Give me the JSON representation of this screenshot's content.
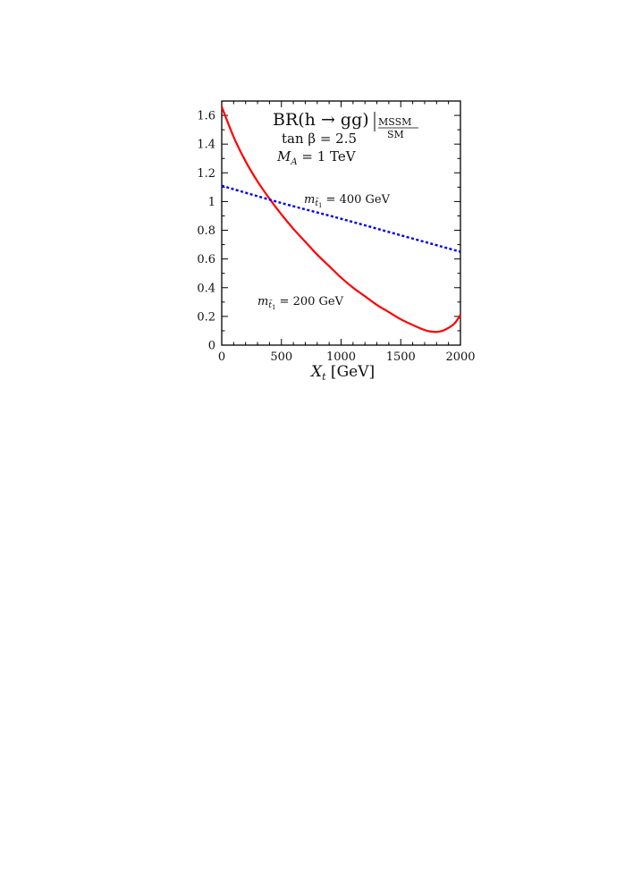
{
  "chart_data": {
    "type": "line",
    "title": {
      "main": "BR(h → gg)",
      "sub_top": "MSSM",
      "sub_bottom": "SM"
    },
    "params": [
      "tan β = 2.5",
      "M",
      "A",
      " = 1 TeV"
    ],
    "xlabel": {
      "symbol": "X",
      "sub": "t",
      "unit": " [GeV]"
    },
    "ylabel": "",
    "xlim": [
      0,
      2000
    ],
    "ylim": [
      0,
      1.7
    ],
    "xticks": [
      0,
      500,
      1000,
      1500,
      2000
    ],
    "yticks": [
      0,
      0.2,
      0.4,
      0.6,
      0.8,
      1,
      1.2,
      1.4,
      1.6
    ],
    "grid": false,
    "series": [
      {
        "name": "m t̃1 = 200 GeV",
        "label_parts": [
          "m",
          "t̃",
          "1",
          " = 200 GeV"
        ],
        "color": "#ff0000",
        "style": "solid",
        "x": [
          0,
          100,
          200,
          300,
          400,
          500,
          600,
          700,
          800,
          900,
          1000,
          1100,
          1200,
          1300,
          1400,
          1500,
          1600,
          1700,
          1750,
          1800,
          1850,
          1900,
          1950,
          2000
        ],
        "y": [
          1.66,
          1.45,
          1.28,
          1.14,
          1.02,
          0.91,
          0.81,
          0.72,
          0.63,
          0.55,
          0.47,
          0.4,
          0.34,
          0.28,
          0.23,
          0.18,
          0.14,
          0.105,
          0.095,
          0.092,
          0.1,
          0.12,
          0.15,
          0.21
        ]
      },
      {
        "name": "m t̃1 = 400 GeV",
        "label_parts": [
          "m",
          "t̃",
          "1",
          " = 400 GeV"
        ],
        "color": "#0000ee",
        "style": "dotted",
        "x": [
          0,
          500,
          1000,
          1500,
          2000
        ],
        "y": [
          1.11,
          0.99,
          0.88,
          0.765,
          0.65
        ]
      }
    ]
  }
}
